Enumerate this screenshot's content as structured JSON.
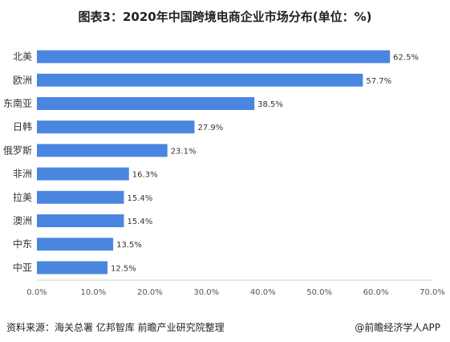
{
  "chart_data": {
    "type": "bar",
    "orientation": "horizontal",
    "title": "图表3：2020年中国跨境电商企业市场分布(单位：%)",
    "categories": [
      "北美",
      "欧洲",
      "东南亚",
      "日韩",
      "俄罗斯",
      "非洲",
      "拉美",
      "澳洲",
      "中东",
      "中亚"
    ],
    "values": [
      62.5,
      57.7,
      38.5,
      27.9,
      23.1,
      16.3,
      15.4,
      15.4,
      13.5,
      12.5
    ],
    "value_labels": [
      "62.5%",
      "57.7%",
      "38.5%",
      "27.9%",
      "23.1%",
      "16.3%",
      "15.4%",
      "15.4%",
      "13.5%",
      "12.5%"
    ],
    "xlim": [
      0,
      70
    ],
    "xticks": [
      0,
      10,
      20,
      30,
      40,
      50,
      60,
      70
    ],
    "xtick_labels": [
      "0.0%",
      "10.0%",
      "20.0%",
      "30.0%",
      "40.0%",
      "50.0%",
      "60.0%",
      "70.0%"
    ],
    "xlabel": "",
    "ylabel": "",
    "grid": false,
    "legend": "none",
    "bar_color": "#4a86e0"
  },
  "footer": {
    "source": "资料来源：海关总署 亿邦智库 前瞻产业研究院整理",
    "credit": "@前瞻经济学人APP"
  }
}
